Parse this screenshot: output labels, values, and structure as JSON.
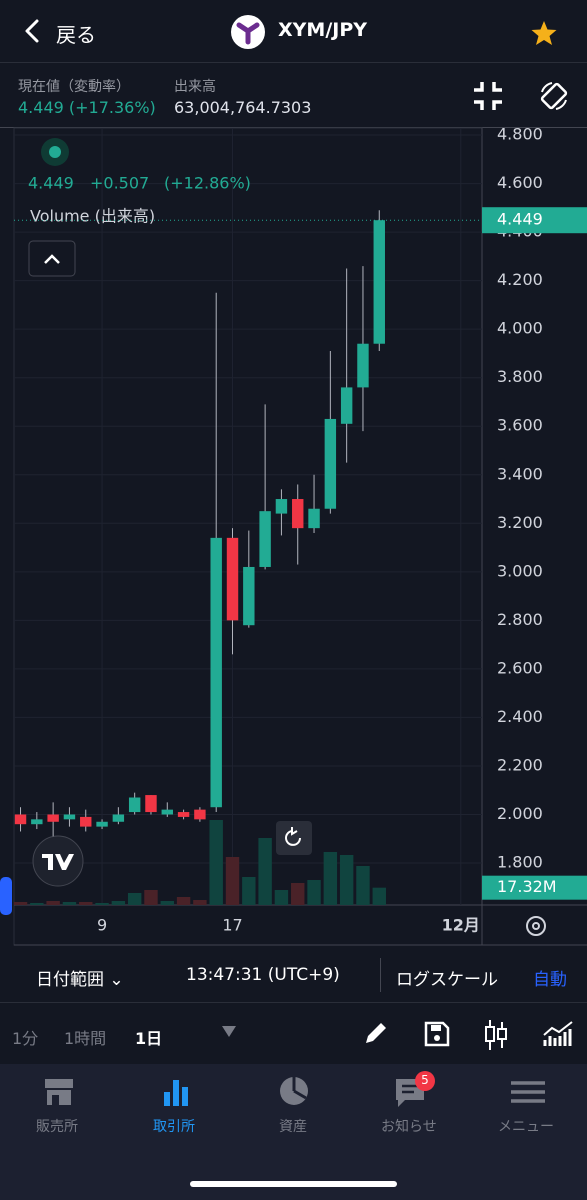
{
  "header": {
    "back": "戻る",
    "pair": "XYM/JPY"
  },
  "summary": {
    "price_label": "現在値（変動率）",
    "price": "4.449 (+17.36%)",
    "volume_label": "出来高",
    "volume": "63,004,764.7303"
  },
  "chart_data": {
    "type": "candlestick",
    "legend": {
      "price": "4.449",
      "change": "+0.507",
      "change_pct": "(+12.86%)",
      "volume_title": "Volume (出来高)"
    },
    "x": [
      4,
      5,
      6,
      7,
      8,
      9,
      10,
      11,
      12,
      13,
      14,
      15,
      16,
      17,
      18,
      19,
      20,
      21,
      22,
      23,
      24,
      25,
      26
    ],
    "xlim": [
      3.6,
      32.3
    ],
    "xticks": [
      9,
      17,
      {
        "value": 31,
        "label": "12月"
      }
    ],
    "open": [
      2.0,
      1.96,
      2.0,
      1.98,
      1.99,
      1.95,
      1.97,
      2.01,
      2.08,
      2.0,
      2.01,
      2.02,
      2.03,
      3.14,
      2.78,
      3.02,
      3.24,
      3.3,
      3.18,
      3.26,
      3.61,
      3.76,
      3.94
    ],
    "high": [
      2.03,
      2.01,
      2.05,
      2.03,
      2.02,
      1.98,
      2.03,
      2.09,
      2.08,
      2.05,
      2.02,
      2.03,
      4.15,
      3.18,
      3.17,
      3.69,
      3.34,
      3.36,
      3.4,
      3.91,
      4.25,
      4.26,
      4.49
    ],
    "low": [
      1.93,
      1.94,
      1.91,
      1.95,
      1.93,
      1.94,
      1.96,
      2.0,
      2.0,
      1.99,
      1.98,
      1.97,
      2.01,
      2.66,
      2.77,
      3.01,
      3.15,
      3.03,
      3.16,
      3.24,
      3.45,
      3.58,
      3.91
    ],
    "close": [
      1.96,
      1.98,
      1.97,
      2.0,
      1.95,
      1.97,
      2.0,
      2.07,
      2.01,
      2.02,
      1.99,
      1.98,
      3.14,
      2.8,
      3.02,
      3.25,
      3.3,
      3.18,
      3.26,
      3.63,
      3.76,
      3.94,
      4.449
    ],
    "volume": [
      3,
      2,
      4,
      3,
      3,
      2,
      4,
      12,
      15,
      4,
      8,
      5,
      85,
      48,
      28,
      67,
      15,
      22,
      25,
      53,
      50,
      39,
      17.32
    ],
    "volume_ylim": [
      0,
      100
    ],
    "ylim": [
      1.627,
      4.829
    ],
    "yticks": [
      {
        "value": 1.8,
        "label": "1.800"
      },
      {
        "value": 2.0,
        "label": "2.000"
      },
      {
        "value": 2.2,
        "label": "2.200"
      },
      {
        "value": 2.4,
        "label": "2.400"
      },
      {
        "value": 2.6,
        "label": "2.600"
      },
      {
        "value": 2.8,
        "label": "2.800"
      },
      {
        "value": 3.0,
        "label": "3.000"
      },
      {
        "value": 3.2,
        "label": "3.200"
      },
      {
        "value": 3.4,
        "label": "3.400"
      },
      {
        "value": 3.6,
        "label": "3.600"
      },
      {
        "value": 3.8,
        "label": "3.800"
      },
      {
        "value": 4.0,
        "label": "4.000"
      },
      {
        "value": 4.2,
        "label": "4.200"
      },
      {
        "value": 4.4,
        "label": "4.400"
      },
      {
        "value": 4.6,
        "label": "4.600"
      },
      {
        "value": 4.8,
        "label": "4.800"
      }
    ],
    "last_price_label": "4.449",
    "last_volume_label": "17.32M",
    "up_color": "#22ab94",
    "down_color": "#f23645",
    "up_volume_color": "#10443f",
    "down_volume_color": "#4a2228",
    "grid": true
  },
  "toolbar": {
    "date_range": "日付範囲",
    "time": "13:47:31 (UTC+9)",
    "log_scale": "ログスケール",
    "auto": "自動"
  },
  "intervals": [
    "1分",
    "1時間",
    "1日"
  ],
  "nav": [
    "販売所",
    "取引所",
    "資産",
    "お知らせ",
    "メニュー"
  ],
  "notification_badge": "5"
}
